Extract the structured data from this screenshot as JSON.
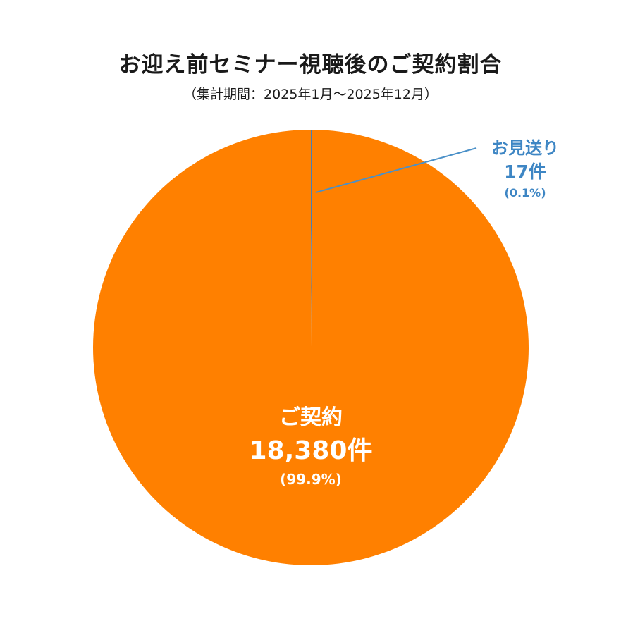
{
  "chart_data": {
    "type": "pie",
    "title": "お迎え前セミナー視聴後のご契約割合",
    "subtitle": "（集計期間：2025年1月～2025年12月）",
    "slices": [
      {
        "label": "ご契約",
        "count_text": "18,380件",
        "percent_text": "(99.9%)",
        "value": 18380,
        "color": "#ff8000"
      },
      {
        "label": "お見送り",
        "count_text": "17件",
        "percent_text": "(0.1%)",
        "value": 17,
        "color": "#4a7fb5"
      }
    ],
    "leader_color": "#4a90c8"
  }
}
